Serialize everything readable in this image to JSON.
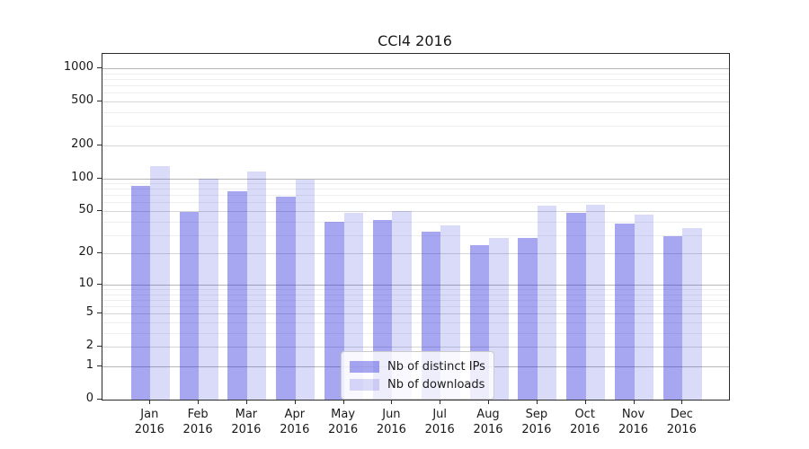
{
  "chart_data": {
    "type": "bar",
    "title": "CCl4 2016",
    "categories": [
      "Jan 2016",
      "Feb 2016",
      "Mar 2016",
      "Apr 2016",
      "May 2016",
      "Jun 2016",
      "Jul 2016",
      "Aug 2016",
      "Sep 2016",
      "Oct 2016",
      "Nov 2016",
      "Dec 2016"
    ],
    "series": [
      {
        "name": "Nb of distinct IPs",
        "color": "rgba(34,34,221,0.40)",
        "solid_color": "#a7a7f1",
        "values": [
          85,
          49,
          76,
          68,
          40,
          41,
          32,
          24,
          28,
          48,
          38,
          29
        ]
      },
      {
        "name": "Nb of downloads",
        "color": "rgba(34,34,221,0.17)",
        "solid_color": "#d9d9f9",
        "values": [
          130,
          99,
          115,
          98,
          48,
          50,
          37,
          28,
          56,
          57,
          46,
          35
        ]
      }
    ],
    "y_axis": {
      "scale": "log1p",
      "tick_values": [
        0,
        1,
        2,
        5,
        10,
        20,
        50,
        100,
        200,
        500,
        1000
      ],
      "major_grid_values": [
        1,
        10,
        100,
        1000
      ],
      "minor_grid_values": [
        3,
        4,
        6,
        7,
        8,
        9,
        30,
        40,
        60,
        70,
        80,
        90,
        300,
        400,
        600,
        700,
        800,
        900
      ],
      "range": [
        0,
        1350
      ]
    },
    "x_axis": {
      "label_lines": 2
    },
    "grid": true,
    "legend_position": "lower center-right",
    "colors": {
      "axis": "#2b2b2b",
      "grid_major": "#b6b6b6",
      "grid_labeled": "#d6d6d6",
      "grid_minor": "#eeeeee",
      "background": "#ffffff"
    }
  }
}
